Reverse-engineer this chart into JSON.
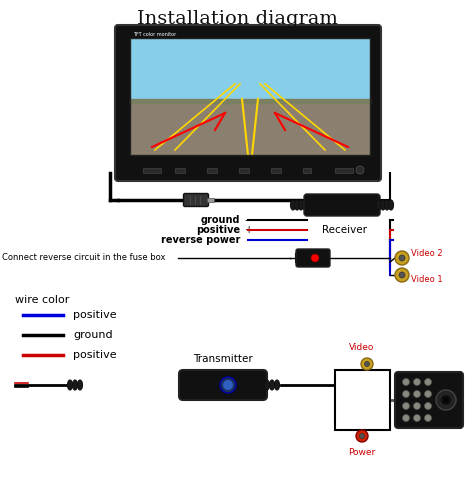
{
  "title": "Installation diagram",
  "title_fontsize": 14,
  "bg_color": "#ffffff",
  "monitor_label": "TFT color monitor",
  "labels": {
    "ground": "ground",
    "positive1": "positive",
    "reverse_power": "reverse power",
    "connect_text": "Connect reverse circuit in the fuse box",
    "receiver": "Receiver",
    "wire_color": "wire color",
    "wc_positive": "positive",
    "wc_ground": "ground",
    "wc_positive2": "positive",
    "transmitter": "Transmitter",
    "video2": "Video 2",
    "video1": "Video 1",
    "video": "Video",
    "power": "Power"
  },
  "colors": {
    "black": "#000000",
    "blue": "#0000dd",
    "red": "#cc0000",
    "dark_red": "#880000",
    "yellow_rca": "#d4a017",
    "white": "#ffffff",
    "monitor_body": "#111111",
    "sky_top": "#87CEEB",
    "sky_bottom": "#5ba8d4",
    "road_top": "#9a8870",
    "road_mid": "#7a7060",
    "road_bottom": "#5a5248",
    "device_body": "#1a1a1a",
    "btn_color": "#2a2a2a"
  }
}
